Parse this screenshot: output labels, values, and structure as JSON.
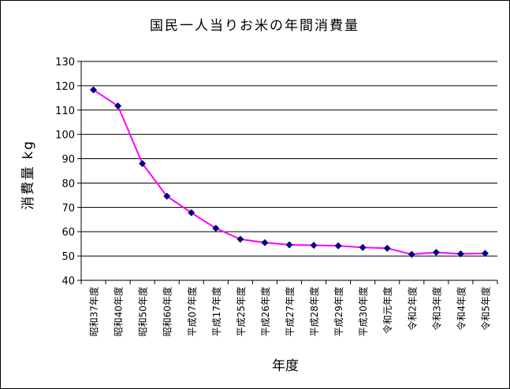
{
  "chart_data": {
    "type": "line",
    "title": "国民一人当りお米の年間消費量",
    "xlabel": "年度",
    "ylabel": "消費量 kg",
    "categories": [
      "昭和37年度",
      "昭和40年度",
      "昭和50年度",
      "昭和60年度",
      "平成07年度",
      "平成17年度",
      "平成25年度",
      "平成26年度",
      "平成27年度",
      "平成28年度",
      "平成29年度",
      "平成30年度",
      "令和元年度",
      "令和2年度",
      "令和3年度",
      "令和4年度",
      "令和5年度"
    ],
    "series": [
      {
        "values": [
          118.3,
          111.7,
          88.0,
          74.6,
          67.8,
          61.4,
          56.9,
          55.5,
          54.6,
          54.4,
          54.2,
          53.5,
          53.2,
          50.7,
          51.5,
          50.9,
          51.1
        ]
      }
    ],
    "ylim": [
      40,
      130
    ],
    "yticks": [
      40,
      50,
      60,
      70,
      80,
      90,
      100,
      110,
      120,
      130
    ],
    "grid": true,
    "legend": "none",
    "colors": {
      "line": "#ff00ff",
      "marker": "#000080",
      "gridline": "#000000"
    }
  }
}
